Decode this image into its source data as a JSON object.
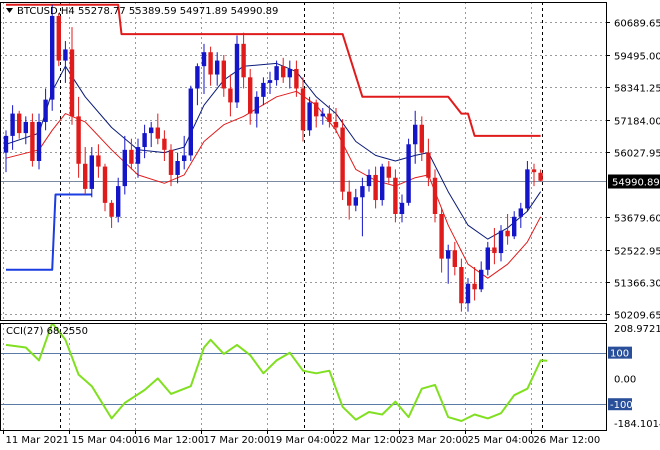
{
  "header": {
    "symbol": "BTCUSD,H4",
    "ohlc": "55278.77 55389.59 54971.89 54990.89"
  },
  "indicator_header": "CCI(27) 68.2550",
  "price_marker": "54990.89",
  "colors": {
    "bull": "#1414c8",
    "bear": "#e01b1b",
    "fast_ma": "#0a1a78",
    "slow_ma": "#e01b1b",
    "trail_high": "#e01b1b",
    "trail_low": "#1a3ce0",
    "cci": "#80e020",
    "grid": "#9a9a9a"
  },
  "chart_data": [
    {
      "type": "candlestick",
      "symbol": "BTCUSD",
      "timeframe": "H4",
      "y_ticks": [
        "60689.65",
        "59495.00",
        "58341.25",
        "57184.00",
        "56027.95",
        "54990.89",
        "53679.60",
        "52522.95",
        "51366.30",
        "50209.65"
      ],
      "y_tick_values": [
        60689.65,
        59495.0,
        58341.25,
        57184.0,
        56027.95,
        54990.89,
        53679.6,
        52522.95,
        51366.3,
        50209.65
      ],
      "ylim": [
        50000,
        61400
      ],
      "x_ticks": [
        "11 Mar 2021",
        "15 Mar 04:00",
        "16 Mar 12:00",
        "17 Mar 20:00",
        "19 Mar 04:00",
        "22 Mar 12:00",
        "23 Mar 20:00",
        "25 Mar 04:00",
        "26 Mar 12:00"
      ],
      "candles": [
        [
          56000,
          56800,
          55300,
          56600
        ],
        [
          56600,
          57700,
          56100,
          57400
        ],
        [
          57400,
          57500,
          56500,
          56700
        ],
        [
          56700,
          57300,
          56300,
          57100
        ],
        [
          57100,
          57400,
          55500,
          55700
        ],
        [
          55700,
          57400,
          55400,
          57100
        ],
        [
          57100,
          58300,
          56800,
          57900
        ],
        [
          57900,
          61300,
          57500,
          60900
        ],
        [
          60900,
          61000,
          59100,
          59300
        ],
        [
          59300,
          60000,
          58500,
          59700
        ],
        [
          59700,
          60500,
          57000,
          57300
        ],
        [
          57300,
          58000,
          55100,
          55600
        ],
        [
          55600,
          56200,
          54500,
          54700
        ],
        [
          54700,
          56200,
          54400,
          55900
        ],
        [
          55900,
          56300,
          55100,
          55500
        ],
        [
          55500,
          55600,
          53900,
          54200
        ],
        [
          54200,
          54300,
          53300,
          53700
        ],
        [
          53700,
          55100,
          53500,
          54800
        ],
        [
          54800,
          56600,
          54500,
          56100
        ],
        [
          56100,
          56500,
          55400,
          55600
        ],
        [
          55600,
          56500,
          55100,
          56200
        ],
        [
          56200,
          57000,
          55800,
          56700
        ],
        [
          56700,
          57100,
          56200,
          56900
        ],
        [
          56900,
          57400,
          56300,
          56500
        ],
        [
          56500,
          56800,
          55700,
          56100
        ],
        [
          56100,
          56300,
          54800,
          55200
        ],
        [
          55200,
          56000,
          54900,
          55700
        ],
        [
          55700,
          56600,
          55400,
          55900
        ],
        [
          55900,
          58400,
          55700,
          58300
        ],
        [
          58300,
          59200,
          57700,
          59100
        ],
        [
          59100,
          59900,
          58100,
          59600
        ],
        [
          59600,
          59800,
          58400,
          58800
        ],
        [
          58800,
          59600,
          58400,
          59300
        ],
        [
          59300,
          59500,
          58000,
          58300
        ],
        [
          58300,
          58800,
          57300,
          57800
        ],
        [
          57800,
          60200,
          57600,
          59900
        ],
        [
          59900,
          60300,
          58300,
          58700
        ],
        [
          58700,
          59000,
          57000,
          57400
        ],
        [
          57400,
          58200,
          56900,
          58000
        ],
        [
          58000,
          58700,
          57700,
          58500
        ],
        [
          58500,
          58900,
          58100,
          58600
        ],
        [
          58600,
          59300,
          58400,
          59100
        ],
        [
          59100,
          59400,
          58500,
          58700
        ],
        [
          58700,
          59300,
          58300,
          59000
        ],
        [
          59000,
          59300,
          58000,
          58300
        ],
        [
          58300,
          58700,
          56400,
          56800
        ],
        [
          56800,
          58000,
          56600,
          57800
        ],
        [
          57800,
          57900,
          56900,
          57300
        ],
        [
          57300,
          57600,
          57000,
          57400
        ],
        [
          57400,
          57700,
          56900,
          57100
        ],
        [
          57100,
          57600,
          56700,
          56900
        ],
        [
          56900,
          57200,
          54300,
          54600
        ],
        [
          54600,
          55000,
          53600,
          54100
        ],
        [
          54100,
          54700,
          53900,
          54400
        ],
        [
          54400,
          55100,
          53000,
          54800
        ],
        [
          54800,
          55400,
          54600,
          55200
        ],
        [
          55200,
          55500,
          54000,
          54300
        ],
        [
          54300,
          55600,
          54100,
          55500
        ],
        [
          55500,
          55700,
          54900,
          55100
        ],
        [
          55100,
          55400,
          53500,
          53800
        ],
        [
          53800,
          54500,
          53500,
          54200
        ],
        [
          54200,
          56500,
          54100,
          56300
        ],
        [
          56300,
          57500,
          55600,
          57000
        ],
        [
          57000,
          57300,
          55700,
          56000
        ],
        [
          56000,
          56500,
          54800,
          55100
        ],
        [
          55100,
          55400,
          53500,
          53800
        ],
        [
          53800,
          54000,
          51700,
          52200
        ],
        [
          52200,
          52700,
          51300,
          52500
        ],
        [
          52500,
          52800,
          51600,
          51900
        ],
        [
          51900,
          52200,
          50300,
          50600
        ],
        [
          50600,
          51500,
          50300,
          51300
        ],
        [
          51300,
          51900,
          50700,
          51100
        ],
        [
          51100,
          52100,
          51000,
          51800
        ],
        [
          51800,
          52800,
          51600,
          52600
        ],
        [
          52600,
          53300,
          52000,
          52400
        ],
        [
          52400,
          53400,
          52100,
          53200
        ],
        [
          53200,
          53800,
          52700,
          53000
        ],
        [
          53000,
          53900,
          52900,
          53700
        ],
        [
          53700,
          54200,
          53300,
          54000
        ],
        [
          54000,
          55700,
          53900,
          55400
        ],
        [
          55400,
          55600,
          54800,
          55300
        ],
        [
          55278.77,
          55389.59,
          54971.89,
          54990.89
        ]
      ],
      "fast_ma": [
        [
          0,
          56300
        ],
        [
          5,
          56700
        ],
        [
          7,
          58200
        ],
        [
          9,
          59100
        ],
        [
          12,
          58000
        ],
        [
          16,
          56900
        ],
        [
          20,
          56100
        ],
        [
          24,
          56000
        ],
        [
          27,
          56200
        ],
        [
          30,
          57700
        ],
        [
          33,
          58600
        ],
        [
          36,
          59100
        ],
        [
          41,
          59200
        ],
        [
          44,
          58900
        ],
        [
          47,
          58000
        ],
        [
          50,
          57400
        ],
        [
          53,
          56400
        ],
        [
          56,
          55900
        ],
        [
          59,
          55700
        ],
        [
          62,
          55900
        ],
        [
          64,
          56000
        ],
        [
          67,
          54600
        ],
        [
          70,
          53400
        ],
        [
          73,
          52900
        ],
        [
          76,
          53300
        ],
        [
          79,
          53900
        ],
        [
          81,
          54600
        ]
      ],
      "slow_ma": [
        [
          0,
          55800
        ],
        [
          5,
          56100
        ],
        [
          7,
          56800
        ],
        [
          9,
          57400
        ],
        [
          12,
          57100
        ],
        [
          16,
          56100
        ],
        [
          20,
          55200
        ],
        [
          24,
          54900
        ],
        [
          27,
          55200
        ],
        [
          30,
          56400
        ],
        [
          33,
          57000
        ],
        [
          36,
          57300
        ],
        [
          41,
          58000
        ],
        [
          44,
          58200
        ],
        [
          47,
          57700
        ],
        [
          50,
          56800
        ],
        [
          53,
          55400
        ],
        [
          56,
          55000
        ],
        [
          59,
          54800
        ],
        [
          62,
          55100
        ],
        [
          64,
          55200
        ],
        [
          67,
          53400
        ],
        [
          70,
          52000
        ],
        [
          73,
          51500
        ],
        [
          76,
          52000
        ],
        [
          79,
          52800
        ],
        [
          81,
          53700
        ]
      ],
      "trail_high": [
        [
          0,
          61300
        ],
        [
          17,
          61300
        ],
        [
          17.5,
          60250
        ],
        [
          51,
          60250
        ],
        [
          54,
          58000
        ],
        [
          67,
          58000
        ],
        [
          69,
          57400
        ],
        [
          70,
          57400
        ],
        [
          71,
          56600
        ],
        [
          81,
          56600
        ]
      ],
      "trail_low": [
        [
          0,
          51800
        ],
        [
          7,
          51800
        ],
        [
          7.5,
          54500
        ],
        [
          13,
          54500
        ]
      ],
      "current_price": 54990.89
    },
    {
      "type": "line",
      "indicator": "CCI(27)",
      "last_value": 68.255,
      "y_ticks": [
        "208.9721",
        "100",
        "0.00",
        "-100",
        "-184.1014"
      ],
      "y_tick_values": [
        208.9721,
        100,
        0,
        -100,
        -184.1014
      ],
      "ylim": [
        -200,
        215
      ],
      "levels": [
        100,
        -100
      ],
      "values": [
        [
          0,
          130
        ],
        [
          3,
          120
        ],
        [
          5,
          70
        ],
        [
          7,
          215
        ],
        [
          9,
          150
        ],
        [
          11,
          15
        ],
        [
          13,
          -30
        ],
        [
          16,
          -155
        ],
        [
          18,
          -95
        ],
        [
          21,
          -45
        ],
        [
          23,
          0
        ],
        [
          25,
          -60
        ],
        [
          28,
          -30
        ],
        [
          30,
          120
        ],
        [
          31,
          150
        ],
        [
          33,
          95
        ],
        [
          35,
          130
        ],
        [
          37,
          90
        ],
        [
          39,
          20
        ],
        [
          41,
          70
        ],
        [
          43,
          100
        ],
        [
          45,
          30
        ],
        [
          47,
          20
        ],
        [
          49,
          30
        ],
        [
          51,
          -110
        ],
        [
          53,
          -160
        ],
        [
          55,
          -130
        ],
        [
          57,
          -140
        ],
        [
          59,
          -90
        ],
        [
          61,
          -150
        ],
        [
          63,
          -40
        ],
        [
          65,
          -25
        ],
        [
          67,
          -150
        ],
        [
          69,
          -165
        ],
        [
          71,
          -140
        ],
        [
          73,
          -155
        ],
        [
          75,
          -135
        ],
        [
          77,
          -65
        ],
        [
          79,
          -40
        ],
        [
          81,
          70
        ],
        [
          82,
          68.255
        ]
      ]
    }
  ]
}
